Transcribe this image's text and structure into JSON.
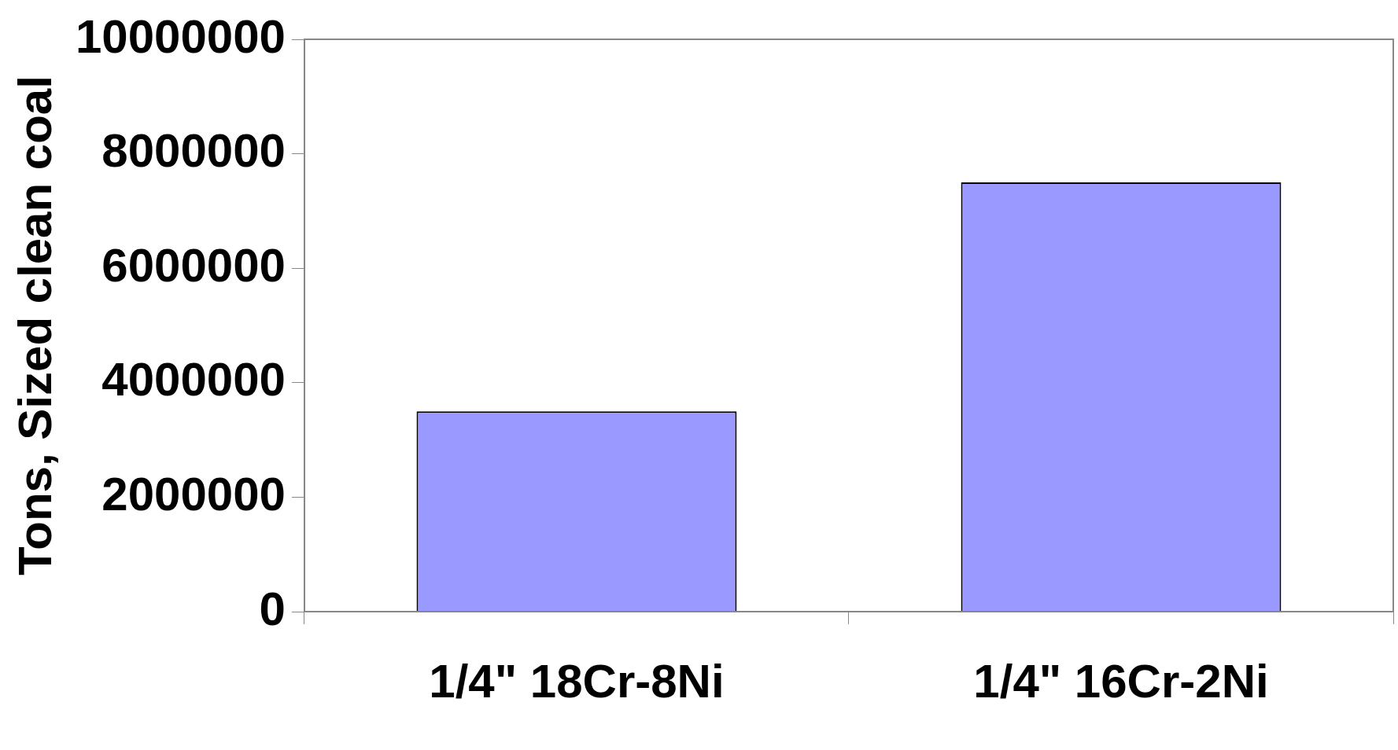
{
  "chart_data": {
    "type": "bar",
    "ylabel": "Tons, Sized clean coal",
    "categories": [
      "1/4\" 18Cr-8Ni",
      "1/4\" 16Cr-2Ni"
    ],
    "values": [
      3500000,
      7500000
    ],
    "color": "#9999ff",
    "ylim": [
      0,
      10000000
    ],
    "yticks": [
      0,
      2000000,
      4000000,
      6000000,
      8000000,
      10000000
    ],
    "grid": false,
    "legend": false
  }
}
